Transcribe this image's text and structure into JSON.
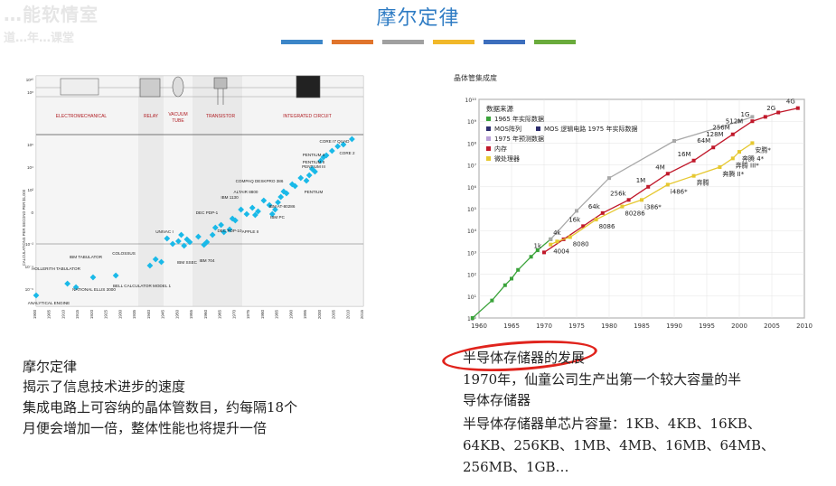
{
  "watermark": {
    "line1": "…能软情室",
    "line2": "道…年…课堂"
  },
  "slide_title": "摩尔定律",
  "stripe_colors": [
    "#3c86c8",
    "#e0742c",
    "#a0a0a0",
    "#f1b82a",
    "#3c6ebd",
    "#6aab3c"
  ],
  "left_panel": {
    "figure": {
      "band_labels": [
        "ELECTROMECHANICAL",
        "RELAY",
        "VACUUM TUBE",
        "TRANSISTOR",
        "INTEGRATED CIRCUIT"
      ],
      "ylabel": "CALCULATIONS PER SECOND PER $1,000",
      "y_ticks": [
        "10¹⁰",
        "10⁸",
        "10⁶",
        "10⁴",
        "10²",
        "0",
        "10⁻²",
        "10⁻⁴",
        "10⁻⁶"
      ],
      "x_ticks": [
        "1900",
        "1905",
        "1910",
        "1915",
        "1920",
        "1925",
        "1930",
        "1935",
        "1940",
        "1945",
        "1950",
        "1955",
        "1960",
        "1965",
        "1970",
        "1975",
        "1980",
        "1985",
        "1990",
        "1995",
        "2000",
        "2005",
        "2010",
        "2015"
      ],
      "annotations": [
        "ANALYTICAL ENGINE",
        "HOLLERITH TABULATOR",
        "IBM TABULATOR",
        "NATIONAL ELLIS 3000",
        "COLOSSUS",
        "BELL CALCULATOR MODEL 1",
        "UNIVAC I",
        "IBM SSEC",
        "IBM 704",
        "DEC PDP-1",
        "IBM 1130",
        "DEC PDP-10",
        "APPLE II",
        "ALTAIR 8800",
        "COMPAQ DESKPRO 386",
        "IBM AT-80286",
        "IBM PC",
        "PENTIUM",
        "PENTIUM II",
        "PENTIUM III",
        "PENTIUM 4",
        "CORE 2",
        "CORE I7 QUAD"
      ]
    },
    "text_lines": [
      "摩尔定律",
      "揭示了信息技术进步的速度",
      "集成电路上可容纳的晶体管数目，约每隔18个",
      "月便会增加一倍，整体性能也将提升一倍"
    ]
  },
  "right_panel": {
    "chart_data": {
      "type": "line",
      "title": "晶体管集成度",
      "xlim": [
        1960,
        2010
      ],
      "ylim_log10": [
        0,
        10
      ],
      "x_ticks": [
        1960,
        1965,
        1970,
        1975,
        1980,
        1985,
        1990,
        1995,
        2000,
        2005,
        2010
      ],
      "y_ticks": [
        "10⁰",
        "10¹",
        "10²",
        "10³",
        "10⁴",
        "10⁵",
        "10⁶",
        "10⁷",
        "10⁸",
        "10⁹",
        "10¹⁰"
      ],
      "legend_title": "数据来源",
      "legend": [
        {
          "label": "1965 年实际数据",
          "color": "#3aa33a",
          "marker": "square"
        },
        {
          "label": "MOS阵列",
          "color": "#2e2e6e",
          "marker": "square"
        },
        {
          "label": "MOS 逻辑电路 1975 年实际数据",
          "color": "#2e2e6e",
          "marker": "square"
        },
        {
          "label": "1975 年预测数据",
          "color": "#b9a0d8",
          "marker": "square"
        },
        {
          "label": "内存",
          "color": "#c0182a",
          "marker": "square"
        },
        {
          "label": "微处理器",
          "color": "#e6c830",
          "marker": "square"
        }
      ],
      "series": [
        {
          "name": "1965 年实际数据",
          "color": "#3aa33a",
          "points": [
            [
              1959,
              0
            ],
            [
              1962,
              0.8
            ],
            [
              1964,
              1.5
            ],
            [
              1965,
              1.8
            ],
            [
              1966,
              2.2
            ],
            [
              1968,
              2.8
            ],
            [
              1969,
              3.1
            ],
            [
              1971,
              3.6
            ]
          ]
        },
        {
          "name": "1975 年预测数据",
          "color": "#a8a8a8",
          "points": [
            [
              1971,
              3.6
            ],
            [
              1975,
              4.9
            ],
            [
              1980,
              6.4
            ],
            [
              1990,
              8.1
            ],
            [
              2000,
              9.0
            ],
            [
              2002,
              9.2
            ]
          ]
        },
        {
          "name": "内存",
          "color": "#c0182a",
          "points": [
            [
              1970,
              3.0
            ],
            [
              1973,
              3.6
            ],
            [
              1976,
              4.2
            ],
            [
              1979,
              4.8
            ],
            [
              1983,
              5.4
            ],
            [
              1986,
              6.0
            ],
            [
              1989,
              6.6
            ],
            [
              1993,
              7.2
            ],
            [
              1996,
              7.8
            ],
            [
              1999,
              8.4
            ],
            [
              2002,
              9.0
            ],
            [
              2004,
              9.2
            ],
            [
              2006,
              9.4
            ],
            [
              2009,
              9.6
            ]
          ]
        },
        {
          "name": "微处理器",
          "color": "#e6c830",
          "points": [
            [
              1971,
              3.36
            ],
            [
              1972,
              3.5
            ],
            [
              1974,
              3.7
            ],
            [
              1978,
              4.5
            ],
            [
              1982,
              5.1
            ],
            [
              1985,
              5.4
            ],
            [
              1989,
              6.1
            ],
            [
              1993,
              6.5
            ],
            [
              1997,
              6.9
            ],
            [
              1999,
              7.3
            ],
            [
              2000,
              7.6
            ],
            [
              2002,
              8.0
            ]
          ]
        }
      ],
      "point_labels": [
        {
          "text": "1k",
          "x": 1970,
          "y": 3.0
        },
        {
          "text": "4k",
          "x": 1973,
          "y": 3.6
        },
        {
          "text": "16k",
          "x": 1976,
          "y": 4.2
        },
        {
          "text": "64k",
          "x": 1979,
          "y": 4.8
        },
        {
          "text": "256k",
          "x": 1983,
          "y": 5.4
        },
        {
          "text": "1M",
          "x": 1986,
          "y": 6.0
        },
        {
          "text": "4M",
          "x": 1989,
          "y": 6.6
        },
        {
          "text": "16M",
          "x": 1993,
          "y": 7.2
        },
        {
          "text": "64M",
          "x": 1996,
          "y": 7.8
        },
        {
          "text": "128M",
          "x": 1998,
          "y": 8.1
        },
        {
          "text": "256M",
          "x": 1999,
          "y": 8.4
        },
        {
          "text": "512M",
          "x": 2001,
          "y": 8.7
        },
        {
          "text": "1G",
          "x": 2002,
          "y": 9.0
        },
        {
          "text": "2G",
          "x": 2006,
          "y": 9.3
        },
        {
          "text": "4G",
          "x": 2009,
          "y": 9.6
        },
        {
          "text": "4004",
          "x": 1971,
          "y": 3.36
        },
        {
          "text": "8080",
          "x": 1974,
          "y": 3.7
        },
        {
          "text": "8086",
          "x": 1978,
          "y": 4.5
        },
        {
          "text": "80286",
          "x": 1982,
          "y": 5.1
        },
        {
          "text": "i386*",
          "x": 1985,
          "y": 5.4
        },
        {
          "text": "i486*",
          "x": 1989,
          "y": 6.1
        },
        {
          "text": "奔腾",
          "x": 1993,
          "y": 6.5
        },
        {
          "text": "奔腾 II*",
          "x": 1997,
          "y": 6.9
        },
        {
          "text": "奔腾 III*",
          "x": 1999,
          "y": 7.3
        },
        {
          "text": "奔腾 4*",
          "x": 2000,
          "y": 7.6
        },
        {
          "text": "安腾*",
          "x": 2002,
          "y": 8.0
        }
      ]
    },
    "text_lines": [
      "半导体存储器的发展",
      "1970年，仙童公司生产出第一个较大容量的半",
      "导体存储器",
      "半导体存储器单芯片容量：1KB、4KB、16KB、",
      "64KB、256KB、1MB、4MB、16MB、64MB、",
      "256MB、1GB…"
    ]
  }
}
